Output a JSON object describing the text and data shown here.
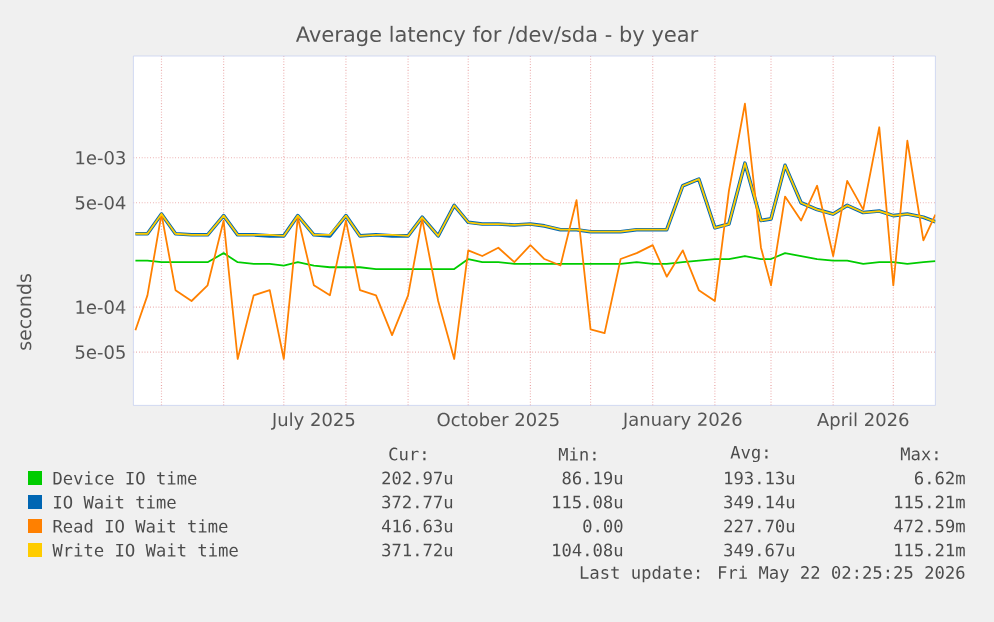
{
  "chart_data": {
    "type": "line",
    "title": "Average latency for /dev/sda - by year",
    "ylabel": "seconds",
    "log": "y",
    "grid": true,
    "legend": "bottom",
    "xlim": [
      "2025-04-17",
      "2026-05-22"
    ],
    "xticks": [
      {
        "value": "2025-05-01",
        "label": null
      },
      {
        "value": "2025-06-01",
        "label": null
      },
      {
        "value": "2025-07-01",
        "label": null
      },
      {
        "value": "2025-07-16",
        "label": "July 2025"
      },
      {
        "value": "2025-08-01",
        "label": null
      },
      {
        "value": "2025-09-01",
        "label": null
      },
      {
        "value": "2025-10-01",
        "label": null
      },
      {
        "value": "2025-10-16",
        "label": "October 2025"
      },
      {
        "value": "2025-11-01",
        "label": null
      },
      {
        "value": "2025-12-01",
        "label": null
      },
      {
        "value": "2026-01-01",
        "label": null
      },
      {
        "value": "2026-01-16",
        "label": "January 2026"
      },
      {
        "value": "2026-02-01",
        "label": null
      },
      {
        "value": "2026-03-01",
        "label": null
      },
      {
        "value": "2026-04-01",
        "label": null
      },
      {
        "value": "2026-04-16",
        "label": "April 2026"
      },
      {
        "value": "2026-05-01",
        "label": null
      }
    ],
    "ylim": [
      2.2e-05,
      0.0048
    ],
    "yticks": [
      {
        "value": 5e-05,
        "label": "5e-05"
      },
      {
        "value": 0.0001,
        "label": "1e-04"
      },
      {
        "value": 0.0005,
        "label": "5e-04"
      },
      {
        "value": 0.001,
        "label": "1e-03"
      }
    ],
    "x": [
      "2025-04-18",
      "2025-04-24",
      "2025-05-01",
      "2025-05-08",
      "2025-05-16",
      "2025-05-24",
      "2025-06-01",
      "2025-06-08",
      "2025-06-16",
      "2025-06-24",
      "2025-07-01",
      "2025-07-08",
      "2025-07-16",
      "2025-07-24",
      "2025-08-01",
      "2025-08-08",
      "2025-08-16",
      "2025-08-24",
      "2025-09-01",
      "2025-09-08",
      "2025-09-16",
      "2025-09-24",
      "2025-10-01",
      "2025-10-08",
      "2025-10-16",
      "2025-10-24",
      "2025-11-01",
      "2025-11-08",
      "2025-11-16",
      "2025-11-24",
      "2025-12-01",
      "2025-12-08",
      "2025-12-16",
      "2025-12-24",
      "2026-01-01",
      "2026-01-08",
      "2026-01-16",
      "2026-01-24",
      "2026-02-01",
      "2026-02-08",
      "2026-02-16",
      "2026-02-24",
      "2026-03-01",
      "2026-03-08",
      "2026-03-16",
      "2026-03-24",
      "2026-04-01",
      "2026-04-08",
      "2026-04-16",
      "2026-04-24",
      "2026-05-01",
      "2026-05-08",
      "2026-05-16",
      "2026-05-22"
    ],
    "series": [
      {
        "name": "Device IO time",
        "color": "#00cc00",
        "values": [
          0.000205,
          0.000205,
          0.0002,
          0.0002,
          0.0002,
          0.0002,
          0.00023,
          0.0002,
          0.000195,
          0.000195,
          0.00019,
          0.0002,
          0.00019,
          0.000185,
          0.000185,
          0.000185,
          0.00018,
          0.00018,
          0.00018,
          0.00018,
          0.00018,
          0.00018,
          0.00021,
          0.0002,
          0.0002,
          0.000195,
          0.000195,
          0.000195,
          0.000195,
          0.000195,
          0.000195,
          0.000195,
          0.000195,
          0.0002,
          0.000195,
          0.000195,
          0.0002,
          0.000205,
          0.00021,
          0.00021,
          0.00022,
          0.00021,
          0.00021,
          0.00023,
          0.00022,
          0.00021,
          0.000205,
          0.000205,
          0.000195,
          0.0002,
          0.0002,
          0.000195,
          0.0002,
          0.000203
        ]
      },
      {
        "name": "IO Wait time",
        "color": "#0066b3",
        "values": [
          0.00031,
          0.00031,
          0.00042,
          0.00031,
          0.000305,
          0.000305,
          0.00041,
          0.000305,
          0.000305,
          0.0003,
          0.0003,
          0.00041,
          0.000305,
          0.0003,
          0.00041,
          0.0003,
          0.000305,
          0.0003,
          0.0003,
          0.0004,
          0.0003,
          0.00048,
          0.00037,
          0.00036,
          0.00036,
          0.000355,
          0.00036,
          0.00035,
          0.00033,
          0.00033,
          0.00032,
          0.00032,
          0.00032,
          0.00033,
          0.00033,
          0.00033,
          0.00065,
          0.00072,
          0.00034,
          0.00036,
          0.00092,
          0.00038,
          0.00039,
          0.00089,
          0.0005,
          0.00045,
          0.00042,
          0.00048,
          0.00043,
          0.00044,
          0.00041,
          0.00042,
          0.0004,
          0.000373
        ]
      },
      {
        "name": "Read IO Wait time",
        "color": "#ff8000",
        "values": [
          7e-05,
          0.00012,
          0.00042,
          0.00013,
          0.00011,
          0.00014,
          0.00038,
          4.5e-05,
          0.00012,
          0.00013,
          4.5e-05,
          0.0004,
          0.00014,
          0.00012,
          0.00038,
          0.00013,
          0.00012,
          6.5e-05,
          0.00012,
          0.00039,
          0.00011,
          4.5e-05,
          0.00024,
          0.00022,
          0.00025,
          0.0002,
          0.00026,
          0.00021,
          0.00019,
          0.00052,
          7.1e-05,
          6.7e-05,
          0.00021,
          0.00023,
          0.00026,
          0.00016,
          0.00024,
          0.00013,
          0.00011,
          0.0006,
          0.0023,
          0.00025,
          0.00014,
          0.00055,
          0.00038,
          0.00065,
          0.00022,
          0.0007,
          0.00045,
          0.0016,
          0.00014,
          0.0013,
          0.00028,
          0.000417
        ]
      },
      {
        "name": "Write IO Wait time",
        "color": "#ffcc00",
        "values": [
          0.00031,
          0.00031,
          0.00042,
          0.00031,
          0.000305,
          0.000305,
          0.00041,
          0.000305,
          0.000305,
          0.000305,
          0.0003,
          0.00041,
          0.000305,
          0.000305,
          0.00041,
          0.0003,
          0.000305,
          0.000305,
          0.0003,
          0.0004,
          0.0003,
          0.00048,
          0.00037,
          0.00036,
          0.00036,
          0.000355,
          0.00036,
          0.00035,
          0.00033,
          0.00033,
          0.00032,
          0.00032,
          0.00032,
          0.00033,
          0.00033,
          0.00033,
          0.00065,
          0.00072,
          0.00034,
          0.00036,
          0.00092,
          0.00038,
          0.00039,
          0.00089,
          0.0005,
          0.00045,
          0.00042,
          0.00048,
          0.00043,
          0.00044,
          0.00041,
          0.00042,
          0.0004,
          0.000372
        ]
      }
    ],
    "annotations": [
      "Cur:",
      "Min:",
      "Avg:",
      "Max:",
      "202.97u",
      "86.19u",
      "193.13u",
      "6.62m",
      "372.77u",
      "115.08u",
      "349.14u",
      "115.21m",
      "416.63u",
      "0.00",
      "227.70u",
      "472.59m",
      "371.72u",
      "104.08u",
      "349.67u",
      "115.21m",
      "Last update: Fri May 22 02:25:25 2026"
    ]
  }
}
